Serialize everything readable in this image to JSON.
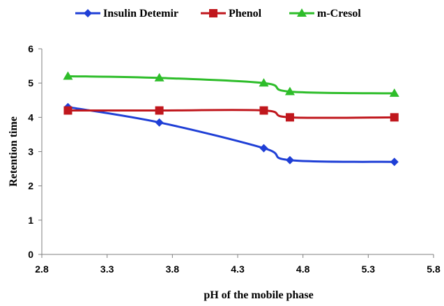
{
  "chart_data": {
    "type": "line",
    "title": "",
    "xlabel": "pH of the mobile phase",
    "ylabel": "Retention time",
    "xlim": [
      2.8,
      5.8
    ],
    "ylim": [
      0,
      6
    ],
    "xticks": [
      2.8,
      3.3,
      3.8,
      4.3,
      4.8,
      5.3,
      5.8
    ],
    "yticks": [
      0,
      1,
      2,
      3,
      4,
      5,
      6
    ],
    "xtick_labels": [
      "2.8",
      "3.3",
      "3.8",
      "4.3",
      "4.8",
      "5.3",
      "5.8"
    ],
    "ytick_labels": [
      "0",
      "1",
      "2",
      "3",
      "4",
      "5",
      "6"
    ],
    "grid": false,
    "legend_position": "top",
    "x": [
      3.0,
      3.7,
      4.5,
      4.7,
      5.5
    ],
    "series": [
      {
        "name": "Insulin Detemir",
        "color": "#1f3fd6",
        "marker": "diamond",
        "values": [
          4.3,
          3.85,
          3.1,
          2.75,
          2.7
        ]
      },
      {
        "name": "Phenol",
        "color": "#c0171d",
        "marker": "square",
        "values": [
          4.2,
          4.2,
          4.2,
          4.0,
          4.0
        ]
      },
      {
        "name": "m-Cresol",
        "color": "#2ebd2a",
        "marker": "triangle",
        "values": [
          5.2,
          5.15,
          5.0,
          4.75,
          4.7
        ]
      }
    ]
  }
}
